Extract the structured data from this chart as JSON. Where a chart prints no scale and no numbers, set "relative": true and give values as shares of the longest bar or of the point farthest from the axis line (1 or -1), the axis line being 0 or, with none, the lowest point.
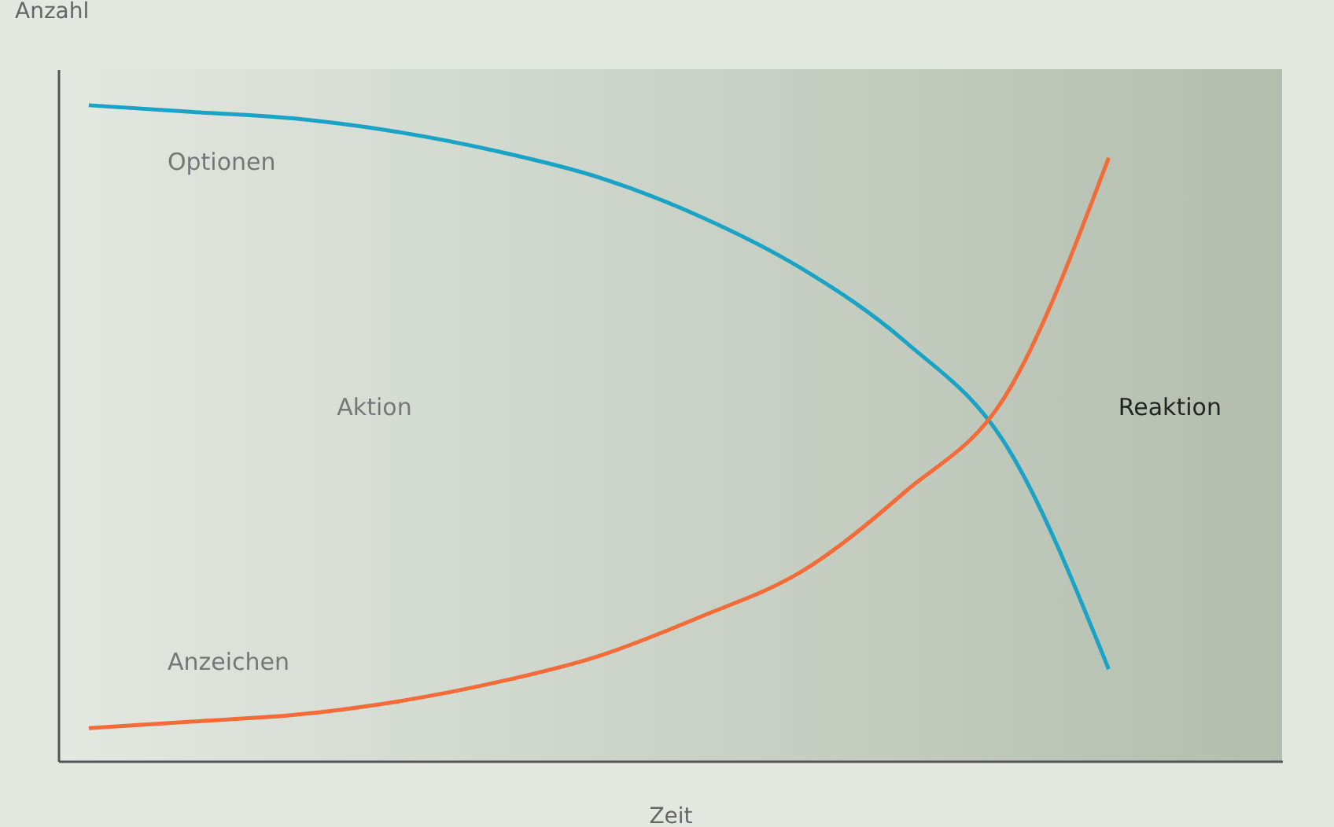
{
  "chart_data": {
    "type": "line",
    "relative": true,
    "xlabel": "Zeit",
    "ylabel": "Anzahl",
    "categories": [
      null,
      null,
      null,
      null,
      null,
      null,
      null,
      null,
      null,
      null,
      null
    ],
    "series": [
      {
        "name": "Optionen",
        "color": "#1ba3c6",
        "values": [
          1.0,
          0.99,
          0.98,
          0.96,
          0.93,
          0.89,
          0.83,
          0.75,
          0.64,
          0.48,
          0.14
        ]
      },
      {
        "name": "Anzeichen",
        "color": "#f26b38",
        "values": [
          0.05,
          0.06,
          0.07,
          0.09,
          0.12,
          0.16,
          0.22,
          0.29,
          0.41,
          0.56,
          0.92
        ]
      }
    ],
    "annotations": [
      "Aktion",
      "Reaktion"
    ],
    "grid": false,
    "legend": false,
    "marker": "none",
    "line_style": "solid"
  }
}
